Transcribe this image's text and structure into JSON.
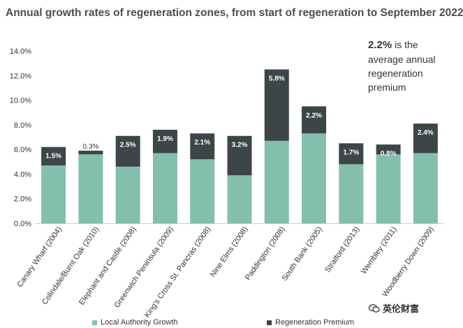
{
  "title": "Annual growth rates of regeneration zones, from start of regeneration to September 2022",
  "annotation": {
    "highlight": "2.2%",
    "line1": "is the",
    "line2": "average annual",
    "line3": "regeneration",
    "line4": "premium"
  },
  "watermark": "英伦财富",
  "colors": {
    "local_authority_growth": "#84bfae",
    "regeneration_premium": "#3c4648"
  },
  "chart_data": {
    "type": "bar",
    "stacked": true,
    "categories": [
      "Canary Wharf (2004)",
      "Colindale/Burnt Oak (2010)",
      "Elephant and Castle (2008)",
      "Greenwich Peninsula (2009)",
      "King's Cross St. Pancras (2008)",
      "Nine Elms (2008)",
      "Paddington (2008)",
      "South Bank (2005)",
      "Stratford (2013)",
      "Wembley (2011)",
      "Woodberry Down (2009)"
    ],
    "series": [
      {
        "name": "Local Authority Growth",
        "values": [
          4.7,
          5.6,
          4.6,
          5.7,
          5.2,
          3.9,
          6.7,
          7.3,
          4.8,
          5.6,
          5.7
        ]
      },
      {
        "name": "Regeneration Premium",
        "values": [
          1.5,
          0.3,
          2.5,
          1.9,
          2.1,
          3.2,
          5.8,
          2.2,
          1.7,
          0.8,
          2.4
        ],
        "labels": [
          "1.5%",
          "0.3%",
          "2.5%",
          "1.9%",
          "2.1%",
          "3.2%",
          "5.8%",
          "2.2%",
          "1.7%",
          "0.8%",
          "2.4%"
        ]
      }
    ],
    "yticks": [
      "0.0%",
      "2.0%",
      "4.0%",
      "6.0%",
      "8.0%",
      "10.0%",
      "12.0%",
      "14.0%"
    ],
    "ylim": [
      0,
      14
    ],
    "grid": false,
    "legend_position": "bottom"
  }
}
